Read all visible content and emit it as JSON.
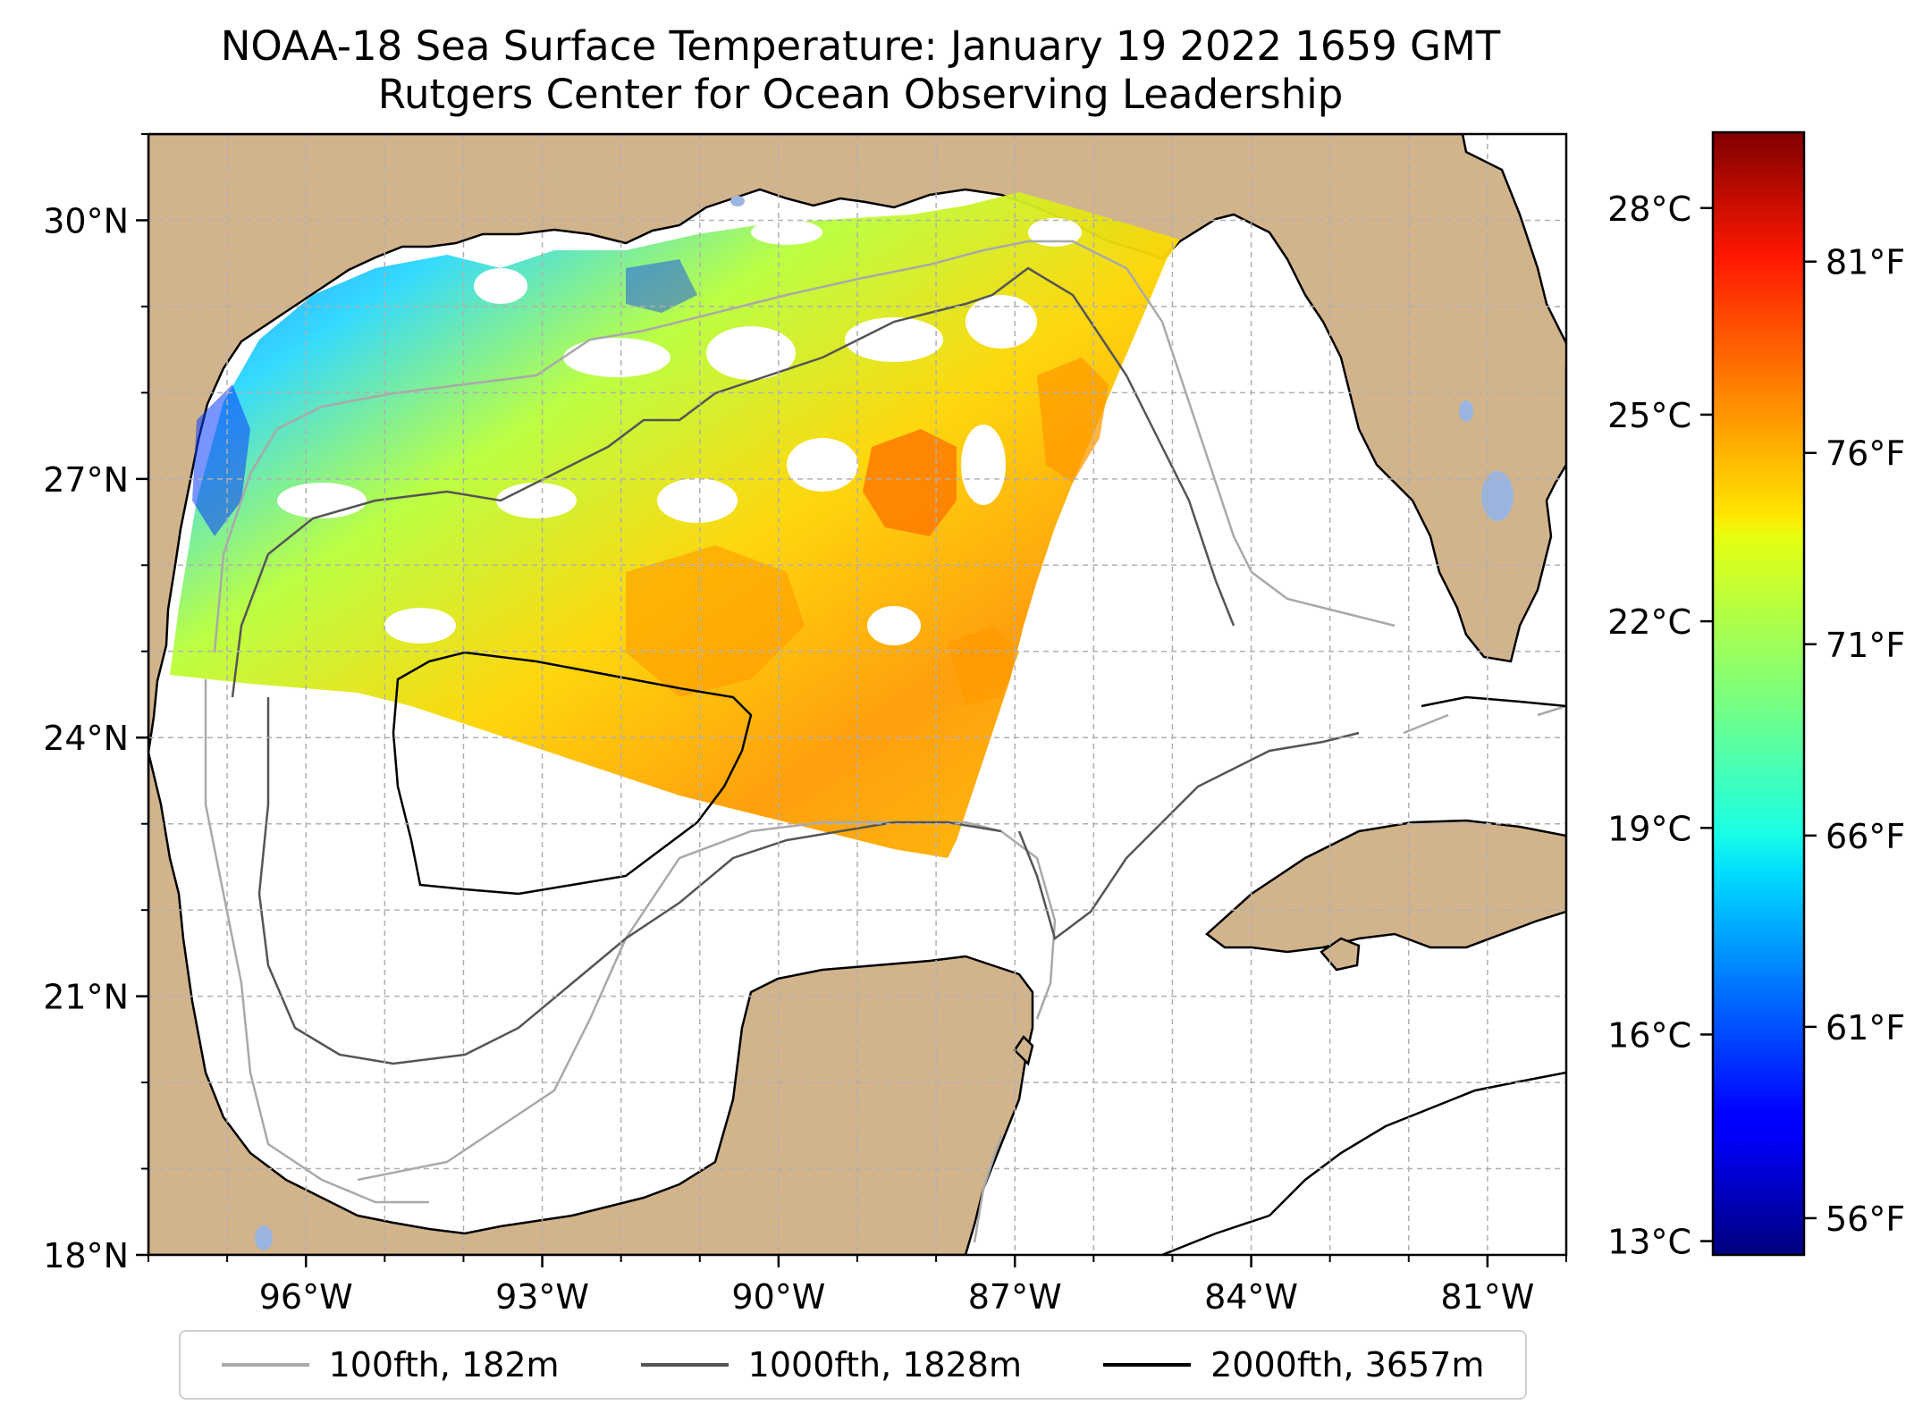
{
  "title_line1": "NOAA-18 Sea Surface Temperature: January 19 2022 1659 GMT",
  "title_line2": "Rutgers Center for Ocean Observing Leadership",
  "map": {
    "lon_range": [
      -98.0,
      -80.0
    ],
    "lat_range": [
      18.0,
      31.0
    ],
    "lat_ticks": [
      {
        "value": 30,
        "label": "30°N"
      },
      {
        "value": 27,
        "label": "27°N"
      },
      {
        "value": 24,
        "label": "24°N"
      },
      {
        "value": 21,
        "label": "21°N"
      },
      {
        "value": 18,
        "label": "18°N"
      }
    ],
    "lon_ticks": [
      {
        "value": -96,
        "label": "96°W"
      },
      {
        "value": -93,
        "label": "93°W"
      },
      {
        "value": -90,
        "label": "90°W"
      },
      {
        "value": -87,
        "label": "87°W"
      },
      {
        "value": -84,
        "label": "84°W"
      },
      {
        "value": -81,
        "label": "81°W"
      }
    ],
    "colors": {
      "land": "#d2b48c",
      "water": "#ffffff",
      "grid": "#b0b0b0",
      "lakes": "#9bb5e0"
    }
  },
  "colorbar": {
    "colormap": "jet",
    "celsius_range": [
      12.8,
      29.1
    ],
    "celsius_ticks": [
      {
        "value": 13,
        "label": "13°C"
      },
      {
        "value": 16,
        "label": "16°C"
      },
      {
        "value": 19,
        "label": "19°C"
      },
      {
        "value": 22,
        "label": "22°C"
      },
      {
        "value": 25,
        "label": "25°C"
      },
      {
        "value": 28,
        "label": "28°C"
      }
    ],
    "fahrenheit_ticks": [
      {
        "value": 56,
        "label": "56°F"
      },
      {
        "value": 61,
        "label": "61°F"
      },
      {
        "value": 66,
        "label": "66°F"
      },
      {
        "value": 71,
        "label": "71°F"
      },
      {
        "value": 76,
        "label": "76°F"
      },
      {
        "value": 81,
        "label": "81°F"
      }
    ]
  },
  "legend": [
    {
      "label": "100fth, 182m",
      "color": "#a9a9a9"
    },
    {
      "label": "1000fth, 1828m",
      "color": "#555555"
    },
    {
      "label": "2000fth, 3657m",
      "color": "#000000"
    }
  ]
}
